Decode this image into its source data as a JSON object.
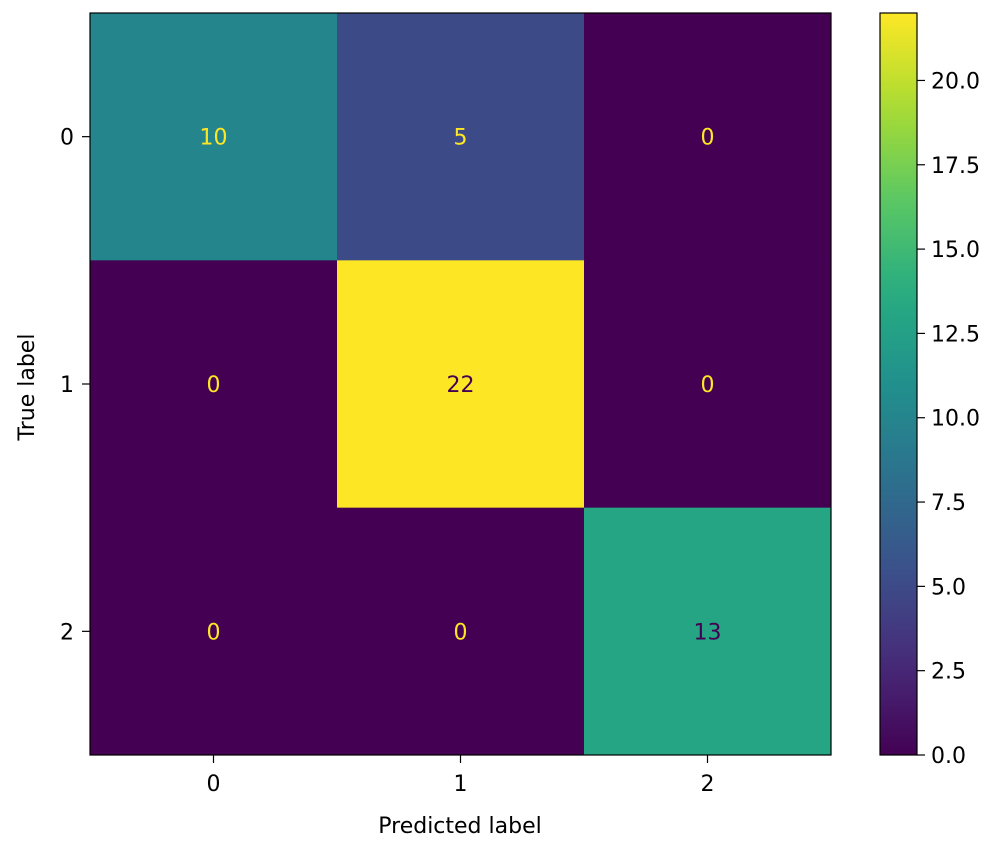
{
  "chart_data": {
    "type": "heatmap",
    "title": "",
    "xlabel": "Predicted label",
    "ylabel": "True label",
    "x_categories": [
      "0",
      "1",
      "2"
    ],
    "y_categories": [
      "0",
      "1",
      "2"
    ],
    "matrix": [
      [
        10,
        5,
        0
      ],
      [
        0,
        22,
        0
      ],
      [
        0,
        0,
        13
      ]
    ],
    "colorscale": "viridis",
    "vmin": 0,
    "vmax": 22,
    "colorbar": {
      "ticks": [
        0,
        2.5,
        5,
        7.5,
        10,
        12.5,
        15,
        17.5,
        20
      ],
      "tick_labels": [
        "0.0",
        "2.5",
        "5.0",
        "7.5",
        "10.0",
        "12.5",
        "15.0",
        "17.5",
        "20.0"
      ]
    },
    "grid": false,
    "colors": {
      "low": "#440154",
      "high": "#fde725",
      "text_on_dark": "#fde725",
      "text_on_light": "#440154"
    }
  }
}
